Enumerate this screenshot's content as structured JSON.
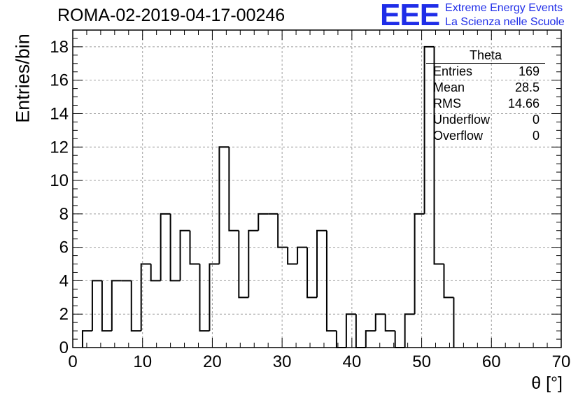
{
  "header": {
    "run_title": "ROMA-02-2019-04-17-00246",
    "logo_mark": "EEE",
    "logo_line1": "Extreme Energy Events",
    "logo_line2": "La Scienza nelle Scuole"
  },
  "stats_box": {
    "title": "Theta",
    "rows": [
      {
        "label": "Entries",
        "value": "169"
      },
      {
        "label": "Mean",
        "value": "28.5"
      },
      {
        "label": "RMS",
        "value": "14.66"
      },
      {
        "label": "Underflow",
        "value": "0"
      },
      {
        "label": "Overflow",
        "value": "0"
      }
    ]
  },
  "colors": {
    "line": "#000000",
    "grid": "#a0a0a0",
    "logo": "#1f2de8"
  },
  "chart_data": {
    "type": "bar",
    "style": "step-histogram",
    "title": "ROMA-02-2019-04-17-00246",
    "xlabel": "θ [°]",
    "ylabel": "Entries/bin",
    "xlim": [
      0,
      70
    ],
    "ylim": [
      0,
      19
    ],
    "grid": true,
    "bin_width": 1.4,
    "bin_edges_start": 1.4,
    "values": [
      1,
      4,
      1,
      4,
      4,
      1,
      5,
      4,
      8,
      4,
      7,
      5,
      1,
      5,
      12,
      7,
      3,
      7,
      8,
      8,
      6,
      5,
      6,
      3,
      7,
      1,
      0,
      2,
      0,
      1,
      2,
      1,
      0,
      2,
      8,
      18,
      5,
      3
    ],
    "x_ticks": [
      0,
      10,
      20,
      30,
      40,
      50,
      60,
      70
    ],
    "y_ticks": [
      0,
      2,
      4,
      6,
      8,
      10,
      12,
      14,
      16,
      18
    ],
    "legend": "top-right stats box"
  }
}
